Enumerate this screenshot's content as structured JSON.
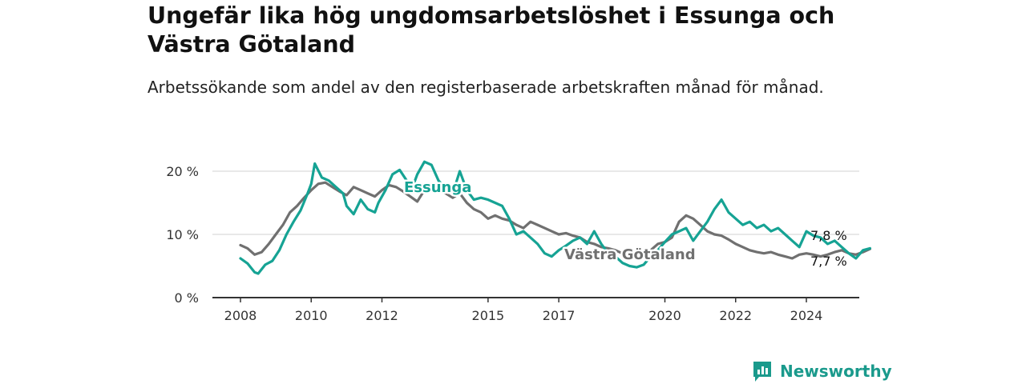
{
  "title": "Ungefär lika hög ungdomsarbetslöshet i Essunga och Västra Götaland",
  "subtitle": "Arbetssökande som andel av den registerbaserade arbetskraften månad för månad.",
  "brand": "Newsworthy",
  "colors": {
    "essunga": "#16a394",
    "vg": "#707070",
    "grid": "#d9d9d9",
    "axis": "#333333"
  },
  "chart_data": {
    "type": "line",
    "title": "Ungefär lika hög ungdomsarbetslöshet i Essunga och Västra Götaland",
    "xlabel": "",
    "ylabel": "",
    "x_ticks": [
      "2008",
      "2010",
      "2012",
      "2015",
      "2017",
      "2020",
      "2022",
      "2024"
    ],
    "y_ticks": [
      "0 %",
      "10 %",
      "20 %"
    ],
    "ylim": [
      0,
      20
    ],
    "xlim": [
      2007.9,
      2025.9
    ],
    "grid": true,
    "series": [
      {
        "name": "Essunga",
        "end_label": "7,8 %",
        "points": [
          [
            2008.0,
            6.2
          ],
          [
            2008.2,
            5.4
          ],
          [
            2008.4,
            4.0
          ],
          [
            2008.5,
            3.8
          ],
          [
            2008.7,
            5.2
          ],
          [
            2008.9,
            5.8
          ],
          [
            2009.1,
            7.5
          ],
          [
            2009.3,
            10.0
          ],
          [
            2009.5,
            12.0
          ],
          [
            2009.7,
            13.8
          ],
          [
            2009.9,
            16.5
          ],
          [
            2010.0,
            18.0
          ],
          [
            2010.1,
            21.2
          ],
          [
            2010.3,
            19.0
          ],
          [
            2010.5,
            18.5
          ],
          [
            2010.7,
            17.5
          ],
          [
            2010.9,
            16.5
          ],
          [
            2011.0,
            14.5
          ],
          [
            2011.2,
            13.2
          ],
          [
            2011.4,
            15.5
          ],
          [
            2011.6,
            14.0
          ],
          [
            2011.8,
            13.5
          ],
          [
            2011.9,
            15.0
          ],
          [
            2012.1,
            17.0
          ],
          [
            2012.3,
            19.5
          ],
          [
            2012.5,
            20.2
          ],
          [
            2012.7,
            18.5
          ],
          [
            2012.9,
            18.0
          ],
          [
            2013.0,
            19.5
          ],
          [
            2013.2,
            21.5
          ],
          [
            2013.4,
            21.0
          ],
          [
            2013.6,
            18.5
          ],
          [
            2013.8,
            17.2
          ],
          [
            2014.0,
            16.5
          ],
          [
            2014.2,
            20.0
          ],
          [
            2014.4,
            17.0
          ],
          [
            2014.6,
            15.5
          ],
          [
            2014.8,
            15.8
          ],
          [
            2015.0,
            15.5
          ],
          [
            2015.2,
            15.0
          ],
          [
            2015.4,
            14.5
          ],
          [
            2015.6,
            12.5
          ],
          [
            2015.8,
            10.0
          ],
          [
            2016.0,
            10.5
          ],
          [
            2016.2,
            9.5
          ],
          [
            2016.4,
            8.5
          ],
          [
            2016.6,
            7.0
          ],
          [
            2016.8,
            6.5
          ],
          [
            2017.0,
            7.5
          ],
          [
            2017.2,
            8.2
          ],
          [
            2017.4,
            9.0
          ],
          [
            2017.6,
            9.5
          ],
          [
            2017.8,
            8.5
          ],
          [
            2018.0,
            10.5
          ],
          [
            2018.2,
            8.5
          ],
          [
            2018.4,
            7.0
          ],
          [
            2018.6,
            6.5
          ],
          [
            2018.8,
            5.5
          ],
          [
            2019.0,
            5.0
          ],
          [
            2019.2,
            4.8
          ],
          [
            2019.4,
            5.2
          ],
          [
            2019.6,
            6.5
          ],
          [
            2019.8,
            7.5
          ],
          [
            2020.0,
            8.8
          ],
          [
            2020.2,
            10.0
          ],
          [
            2020.4,
            10.5
          ],
          [
            2020.6,
            11.0
          ],
          [
            2020.8,
            9.0
          ],
          [
            2021.0,
            10.5
          ],
          [
            2021.2,
            12.0
          ],
          [
            2021.4,
            14.0
          ],
          [
            2021.6,
            15.5
          ],
          [
            2021.8,
            13.5
          ],
          [
            2022.0,
            12.5
          ],
          [
            2022.2,
            11.5
          ],
          [
            2022.4,
            12.0
          ],
          [
            2022.6,
            11.0
          ],
          [
            2022.8,
            11.5
          ],
          [
            2023.0,
            10.5
          ],
          [
            2023.2,
            11.0
          ],
          [
            2023.4,
            10.0
          ],
          [
            2023.6,
            9.0
          ],
          [
            2023.8,
            8.0
          ],
          [
            2024.0,
            10.5
          ],
          [
            2024.2,
            9.8
          ],
          [
            2024.4,
            9.5
          ],
          [
            2024.6,
            8.5
          ],
          [
            2024.8,
            9.0
          ],
          [
            2025.0,
            8.0
          ],
          [
            2025.2,
            7.0
          ],
          [
            2025.4,
            6.2
          ],
          [
            2025.6,
            7.5
          ],
          [
            2025.8,
            7.8
          ]
        ]
      },
      {
        "name": "Västra Götaland",
        "end_label": "7,7 %",
        "points": [
          [
            2008.0,
            8.3
          ],
          [
            2008.2,
            7.8
          ],
          [
            2008.4,
            6.8
          ],
          [
            2008.6,
            7.2
          ],
          [
            2008.8,
            8.5
          ],
          [
            2009.0,
            10.0
          ],
          [
            2009.2,
            11.5
          ],
          [
            2009.4,
            13.5
          ],
          [
            2009.6,
            14.5
          ],
          [
            2009.8,
            15.8
          ],
          [
            2010.0,
            17.0
          ],
          [
            2010.2,
            18.0
          ],
          [
            2010.4,
            18.2
          ],
          [
            2010.6,
            17.5
          ],
          [
            2010.8,
            16.8
          ],
          [
            2011.0,
            16.2
          ],
          [
            2011.2,
            17.5
          ],
          [
            2011.4,
            17.0
          ],
          [
            2011.6,
            16.5
          ],
          [
            2011.8,
            16.0
          ],
          [
            2012.0,
            17.0
          ],
          [
            2012.2,
            17.8
          ],
          [
            2012.4,
            17.5
          ],
          [
            2012.6,
            16.8
          ],
          [
            2012.8,
            16.0
          ],
          [
            2013.0,
            15.2
          ],
          [
            2013.2,
            17.0
          ],
          [
            2013.4,
            17.5
          ],
          [
            2013.6,
            17.0
          ],
          [
            2013.8,
            16.5
          ],
          [
            2014.0,
            15.8
          ],
          [
            2014.2,
            16.5
          ],
          [
            2014.4,
            15.0
          ],
          [
            2014.6,
            14.0
          ],
          [
            2014.8,
            13.5
          ],
          [
            2015.0,
            12.5
          ],
          [
            2015.2,
            13.0
          ],
          [
            2015.4,
            12.5
          ],
          [
            2015.6,
            12.2
          ],
          [
            2015.8,
            11.5
          ],
          [
            2016.0,
            11.0
          ],
          [
            2016.2,
            12.0
          ],
          [
            2016.4,
            11.5
          ],
          [
            2016.6,
            11.0
          ],
          [
            2016.8,
            10.5
          ],
          [
            2017.0,
            10.0
          ],
          [
            2017.2,
            10.2
          ],
          [
            2017.4,
            9.8
          ],
          [
            2017.6,
            9.5
          ],
          [
            2017.8,
            8.8
          ],
          [
            2018.0,
            8.5
          ],
          [
            2018.2,
            8.0
          ],
          [
            2018.4,
            7.8
          ],
          [
            2018.6,
            7.5
          ],
          [
            2018.8,
            7.0
          ],
          [
            2019.0,
            6.8
          ],
          [
            2019.2,
            6.5
          ],
          [
            2019.4,
            7.0
          ],
          [
            2019.6,
            7.5
          ],
          [
            2019.8,
            8.5
          ],
          [
            2020.0,
            8.8
          ],
          [
            2020.2,
            9.5
          ],
          [
            2020.4,
            12.0
          ],
          [
            2020.6,
            13.0
          ],
          [
            2020.8,
            12.5
          ],
          [
            2021.0,
            11.5
          ],
          [
            2021.2,
            10.5
          ],
          [
            2021.4,
            10.0
          ],
          [
            2021.6,
            9.8
          ],
          [
            2021.8,
            9.2
          ],
          [
            2022.0,
            8.5
          ],
          [
            2022.2,
            8.0
          ],
          [
            2022.4,
            7.5
          ],
          [
            2022.6,
            7.2
          ],
          [
            2022.8,
            7.0
          ],
          [
            2023.0,
            7.2
          ],
          [
            2023.2,
            6.8
          ],
          [
            2023.4,
            6.5
          ],
          [
            2023.6,
            6.2
          ],
          [
            2023.8,
            6.8
          ],
          [
            2024.0,
            7.0
          ],
          [
            2024.2,
            6.8
          ],
          [
            2024.4,
            6.5
          ],
          [
            2024.6,
            6.8
          ],
          [
            2024.8,
            7.2
          ],
          [
            2025.0,
            7.5
          ],
          [
            2025.2,
            7.0
          ],
          [
            2025.4,
            6.8
          ],
          [
            2025.6,
            7.2
          ],
          [
            2025.8,
            7.7
          ]
        ]
      }
    ]
  }
}
